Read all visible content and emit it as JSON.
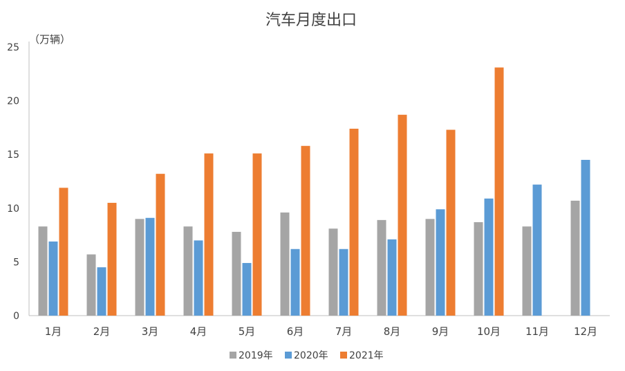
{
  "chart_data": {
    "type": "bar",
    "title": "汽车月度出口",
    "ylabel": "（万辆）",
    "xlabel": "",
    "ylim": [
      0,
      25
    ],
    "yticks": [
      0,
      5,
      10,
      15,
      20,
      25
    ],
    "grid": false,
    "legend_position": "bottom",
    "categories": [
      "1月",
      "2月",
      "3月",
      "4月",
      "5月",
      "6月",
      "7月",
      "8月",
      "9月",
      "10月",
      "11月",
      "12月"
    ],
    "series": [
      {
        "name": "2019年",
        "color": "#a5a5a5",
        "values": [
          8.3,
          5.7,
          9.0,
          8.3,
          7.8,
          9.6,
          8.1,
          8.9,
          9.0,
          8.7,
          8.3,
          10.7
        ]
      },
      {
        "name": "2020年",
        "color": "#5b9bd5",
        "values": [
          6.9,
          4.5,
          9.1,
          7.0,
          4.9,
          6.2,
          6.2,
          7.1,
          9.9,
          10.9,
          12.2,
          14.5
        ]
      },
      {
        "name": "2021年",
        "color": "#ed7d31",
        "values": [
          11.9,
          10.5,
          13.2,
          15.1,
          15.1,
          15.8,
          17.4,
          18.7,
          17.3,
          23.1,
          null,
          null
        ]
      }
    ]
  }
}
